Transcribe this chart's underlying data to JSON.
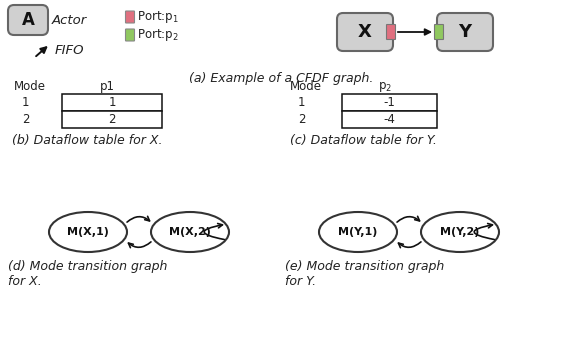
{
  "bg_color": "#ffffff",
  "actor_color": "#d0d0d0",
  "actor_border": "#666666",
  "port_p1_color": "#e07080",
  "port_p2_color": "#90c860",
  "table_border": "#111111",
  "node_border": "#333333",
  "caption_a": "(a) Example of a CFDF graph.",
  "caption_b": "(b) Dataflow table for X.",
  "caption_c": "(c) Dataflow table for Y.",
  "caption_d": "(d) Mode transition graph\nfor X.",
  "caption_e": "(e) Mode transition graph\nfor Y.",
  "legend_actor": "Actor",
  "legend_fifo": "FIFO",
  "legend_p1": "Port:p",
  "legend_p2": "Port:p",
  "table_x_mode_col": [
    "1",
    "2"
  ],
  "table_x_p1_col": [
    "1",
    "2"
  ],
  "table_y_mode_col": [
    "1",
    "2"
  ],
  "table_y_p2_col": [
    "-1",
    "-4"
  ]
}
